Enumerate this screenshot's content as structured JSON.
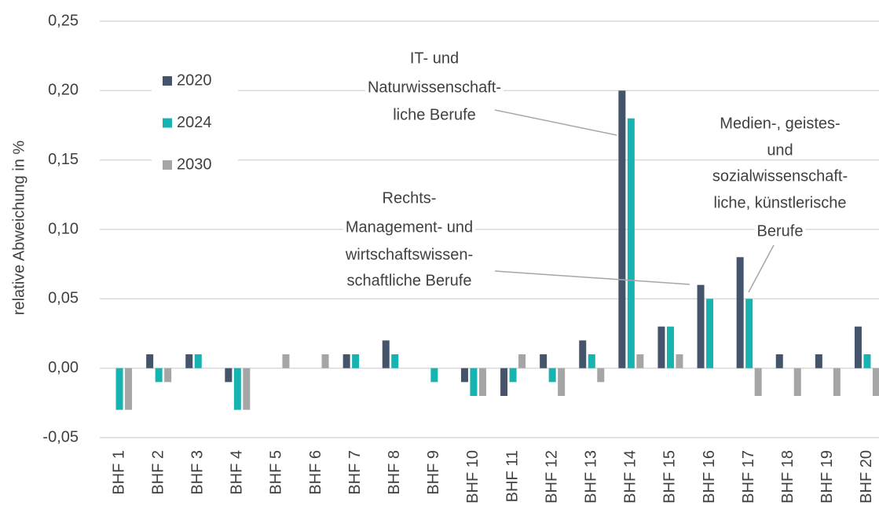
{
  "chart_data": {
    "type": "bar",
    "ylabel": "relative Abweichung in %",
    "categories": [
      "BHF 1",
      "BHF 2",
      "BHF 3",
      "BHF 4",
      "BHF 5",
      "BHF 6",
      "BHF 7",
      "BHF 8",
      "BHF 9",
      "BHF 10",
      "BHF 11",
      "BHF 12",
      "BHF 13",
      "BHF 14",
      "BHF 15",
      "BHF 16",
      "BHF 17",
      "BHF 18",
      "BHF 19",
      "BHF 20"
    ],
    "series": [
      {
        "name": "2020",
        "color": "#44546a",
        "values": [
          0,
          0.01,
          0.01,
          -0.01,
          0,
          0,
          0.01,
          0.02,
          0,
          -0.01,
          -0.02,
          0.01,
          0.02,
          0.2,
          0.03,
          0.06,
          0.08,
          0.01,
          0.01,
          0.03
        ]
      },
      {
        "name": "2024",
        "color": "#17b3b0",
        "values": [
          -0.03,
          -0.01,
          0.01,
          -0.03,
          0,
          0,
          0.01,
          0.01,
          -0.01,
          -0.02,
          -0.01,
          -0.01,
          0.01,
          0.18,
          0.03,
          0.05,
          0.05,
          0,
          0,
          0.01
        ]
      },
      {
        "name": "2030",
        "color": "#a5a5a5",
        "values": [
          -0.03,
          -0.01,
          0,
          -0.03,
          0.01,
          0.01,
          0,
          0,
          0,
          -0.02,
          0.01,
          -0.02,
          -0.01,
          0.01,
          0.01,
          0,
          -0.02,
          -0.02,
          -0.02,
          -0.02
        ]
      }
    ],
    "ylim": [
      -0.05,
      0.25
    ],
    "yticks": [
      {
        "value": -0.05,
        "label": "-0,05"
      },
      {
        "value": 0,
        "label": "0,00"
      },
      {
        "value": 0.05,
        "label": "0,05"
      },
      {
        "value": 0.1,
        "label": "0,10"
      },
      {
        "value": 0.15,
        "label": "0,15"
      },
      {
        "value": 0.2,
        "label": "0,20"
      },
      {
        "value": 0.25,
        "label": "0,25"
      }
    ],
    "grid": true,
    "legend_position": "upper left",
    "annotations": [
      {
        "lines": [
          "IT- und",
          "Naturwissenschaft-",
          "liche Berufe"
        ]
      },
      {
        "lines": [
          "Rechts-",
          "Management- und",
          "wirtschaftswissen-",
          "schaftliche Berufe"
        ]
      },
      {
        "lines": [
          "Medien-, geistes-",
          "und",
          "sozialwissenschaft-",
          "liche, künstlerische",
          "Berufe"
        ]
      }
    ]
  }
}
